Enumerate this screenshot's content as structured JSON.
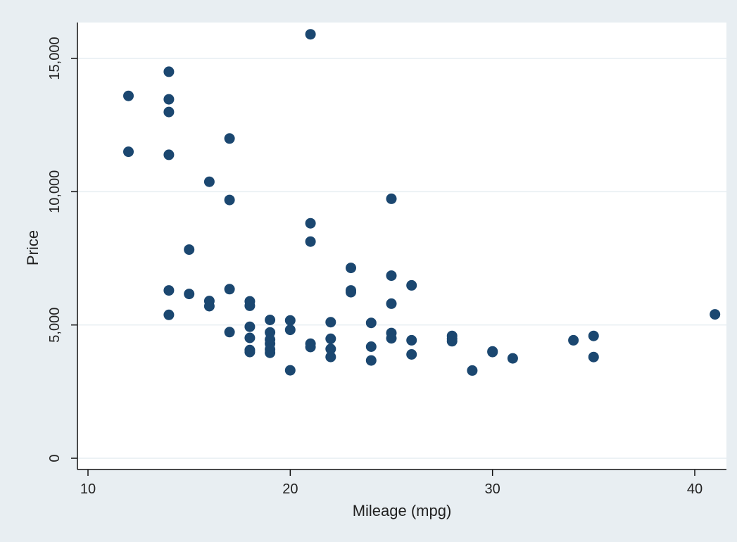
{
  "chart_data": {
    "type": "scatter",
    "title": "",
    "xlabel": "Mileage (mpg)",
    "ylabel": "Price",
    "xlim": [
      10,
      41.5
    ],
    "ylim": [
      0,
      16500
    ],
    "x_ticks": [
      10,
      20,
      30,
      40
    ],
    "x_tick_labels": [
      "10",
      "20",
      "30",
      "40"
    ],
    "y_ticks": [
      0,
      5000,
      10000,
      15000
    ],
    "y_tick_labels": [
      "0",
      "5,000",
      "10,000",
      "15,000"
    ],
    "grid": "horizontal",
    "legend": "none",
    "colors": {
      "marker": "#1b4770",
      "plot_background": "#ffffff",
      "outer_background": "#e8eef2",
      "grid": "#e6eef2",
      "axis": "#111111"
    },
    "points": [
      [
        12,
        13594
      ],
      [
        12,
        11497
      ],
      [
        14,
        14500
      ],
      [
        14,
        13466
      ],
      [
        14,
        12990
      ],
      [
        14,
        11385
      ],
      [
        14,
        6295
      ],
      [
        14,
        5379
      ],
      [
        15,
        7827
      ],
      [
        15,
        6165
      ],
      [
        16,
        10372
      ],
      [
        16,
        5899
      ],
      [
        16,
        5705
      ],
      [
        17,
        11995
      ],
      [
        17,
        9690
      ],
      [
        17,
        6342
      ],
      [
        17,
        4733
      ],
      [
        18,
        5886
      ],
      [
        18,
        5719
      ],
      [
        18,
        4934
      ],
      [
        18,
        4516
      ],
      [
        18,
        4060
      ],
      [
        18,
        3984
      ],
      [
        19,
        5189
      ],
      [
        19,
        4723
      ],
      [
        19,
        4453
      ],
      [
        19,
        4296
      ],
      [
        19,
        4082
      ],
      [
        19,
        3955
      ],
      [
        20,
        5172
      ],
      [
        20,
        4816
      ],
      [
        20,
        3299
      ],
      [
        21,
        15906
      ],
      [
        21,
        8814
      ],
      [
        21,
        8129
      ],
      [
        21,
        4296
      ],
      [
        21,
        4172
      ],
      [
        22,
        5104
      ],
      [
        22,
        4482
      ],
      [
        22,
        4099
      ],
      [
        22,
        3799
      ],
      [
        23,
        7140
      ],
      [
        23,
        6295
      ],
      [
        23,
        6229
      ],
      [
        24,
        5079
      ],
      [
        24,
        4187
      ],
      [
        24,
        3667
      ],
      [
        25,
        9735
      ],
      [
        25,
        6850
      ],
      [
        25,
        5798
      ],
      [
        25,
        4697
      ],
      [
        25,
        4499
      ],
      [
        26,
        6486
      ],
      [
        26,
        4425
      ],
      [
        26,
        3895
      ],
      [
        28,
        4589
      ],
      [
        28,
        4482
      ],
      [
        28,
        4389
      ],
      [
        29,
        3291
      ],
      [
        30,
        4010
      ],
      [
        30,
        3984
      ],
      [
        31,
        3748
      ],
      [
        34,
        4425
      ],
      [
        35,
        4589
      ],
      [
        35,
        3798
      ],
      [
        41,
        5397
      ]
    ]
  }
}
